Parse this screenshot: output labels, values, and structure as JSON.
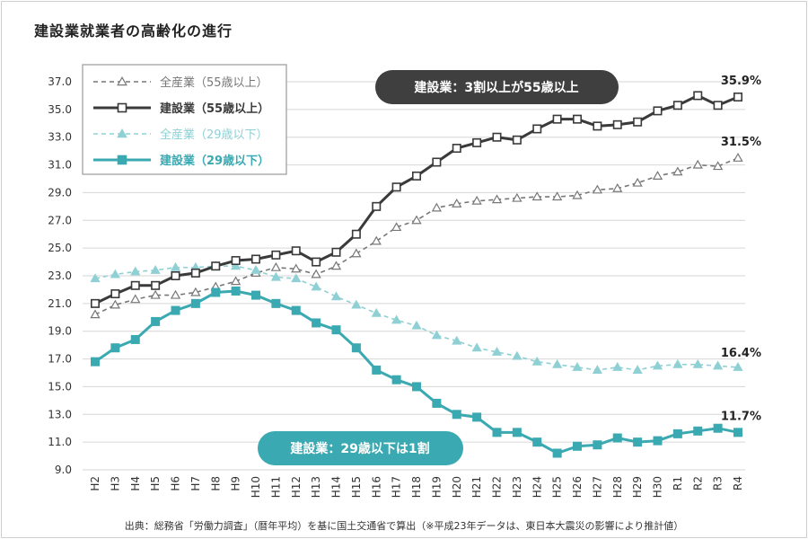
{
  "title": "建設業就業者の高齢化の進行",
  "source": "出典：総務省「労働力調査」（暦年平均）を基に国土交通省で算出（※平成23年データは、東日本大震災の影響により推計値）",
  "callouts": {
    "top": "建設業：3割以上が55歳以上",
    "bottom": "建設業：29歳以下は1割"
  },
  "chart_data": {
    "type": "line",
    "x": [
      "H2",
      "H3",
      "H4",
      "H5",
      "H6",
      "H7",
      "H8",
      "H9",
      "H10",
      "H11",
      "H12",
      "H13",
      "H14",
      "H15",
      "H16",
      "H17",
      "H18",
      "H19",
      "H20",
      "H21",
      "H22",
      "H23",
      "H24",
      "H25",
      "H26",
      "H27",
      "H28",
      "H29",
      "H30",
      "R1",
      "R2",
      "R3",
      "R4"
    ],
    "ylim": [
      9.0,
      37.0
    ],
    "yticks": [
      "37.0",
      "35.0",
      "33.0",
      "31.0",
      "29.0",
      "27.0",
      "25.0",
      "23.0",
      "21.0",
      "19.0",
      "17.0",
      "15.0",
      "13.0",
      "11.0",
      "9.0"
    ],
    "grid": true,
    "legend_position": "top-left",
    "series": [
      {
        "name": "全産業（55歳以上）",
        "color": "#777777",
        "marker": "triangle-open",
        "line": "dashed",
        "end_label": "31.5%",
        "values": [
          20.2,
          20.9,
          21.3,
          21.6,
          21.6,
          21.8,
          22.2,
          22.6,
          23.2,
          23.6,
          23.5,
          23.1,
          23.7,
          24.6,
          25.5,
          26.5,
          27.0,
          27.9,
          28.2,
          28.4,
          28.5,
          28.6,
          28.7,
          28.7,
          28.8,
          29.2,
          29.3,
          29.7,
          30.2,
          30.5,
          31.0,
          30.9,
          31.5
        ]
      },
      {
        "name": "建設業（55歳以上）",
        "color": "#3a3a3a",
        "marker": "square-open",
        "line": "solid",
        "end_label": "35.9%",
        "values": [
          21.0,
          21.7,
          22.3,
          22.3,
          23.0,
          23.2,
          23.7,
          24.1,
          24.2,
          24.5,
          24.8,
          24.0,
          24.7,
          26.0,
          28.0,
          29.4,
          30.2,
          31.2,
          32.2,
          32.6,
          33.0,
          32.8,
          33.6,
          34.3,
          34.3,
          33.8,
          33.9,
          34.1,
          34.9,
          35.3,
          36.0,
          35.3,
          35.9
        ]
      },
      {
        "name": "全産業（29歳以下）",
        "color": "#8fd0d4",
        "marker": "triangle-filled",
        "line": "dashed",
        "end_label": "16.4%",
        "values": [
          22.8,
          23.1,
          23.3,
          23.4,
          23.6,
          23.6,
          23.7,
          23.7,
          23.4,
          22.9,
          22.8,
          22.2,
          21.5,
          20.9,
          20.3,
          19.8,
          19.4,
          18.7,
          18.3,
          17.8,
          17.5,
          17.2,
          16.8,
          16.6,
          16.4,
          16.2,
          16.4,
          16.2,
          16.5,
          16.6,
          16.6,
          16.5,
          16.4
        ]
      },
      {
        "name": "建設業（29歳以下）",
        "color": "#3aa9b1",
        "marker": "square-filled",
        "line": "solid",
        "end_label": "11.7%",
        "values": [
          16.8,
          17.8,
          18.4,
          19.7,
          20.5,
          21.0,
          21.8,
          21.9,
          21.6,
          21.0,
          20.5,
          19.6,
          19.1,
          17.8,
          16.2,
          15.5,
          15.0,
          13.8,
          13.0,
          12.8,
          11.7,
          11.7,
          11.0,
          10.2,
          10.7,
          10.8,
          11.3,
          11.0,
          11.1,
          11.6,
          11.8,
          12.0,
          11.7
        ]
      }
    ]
  }
}
